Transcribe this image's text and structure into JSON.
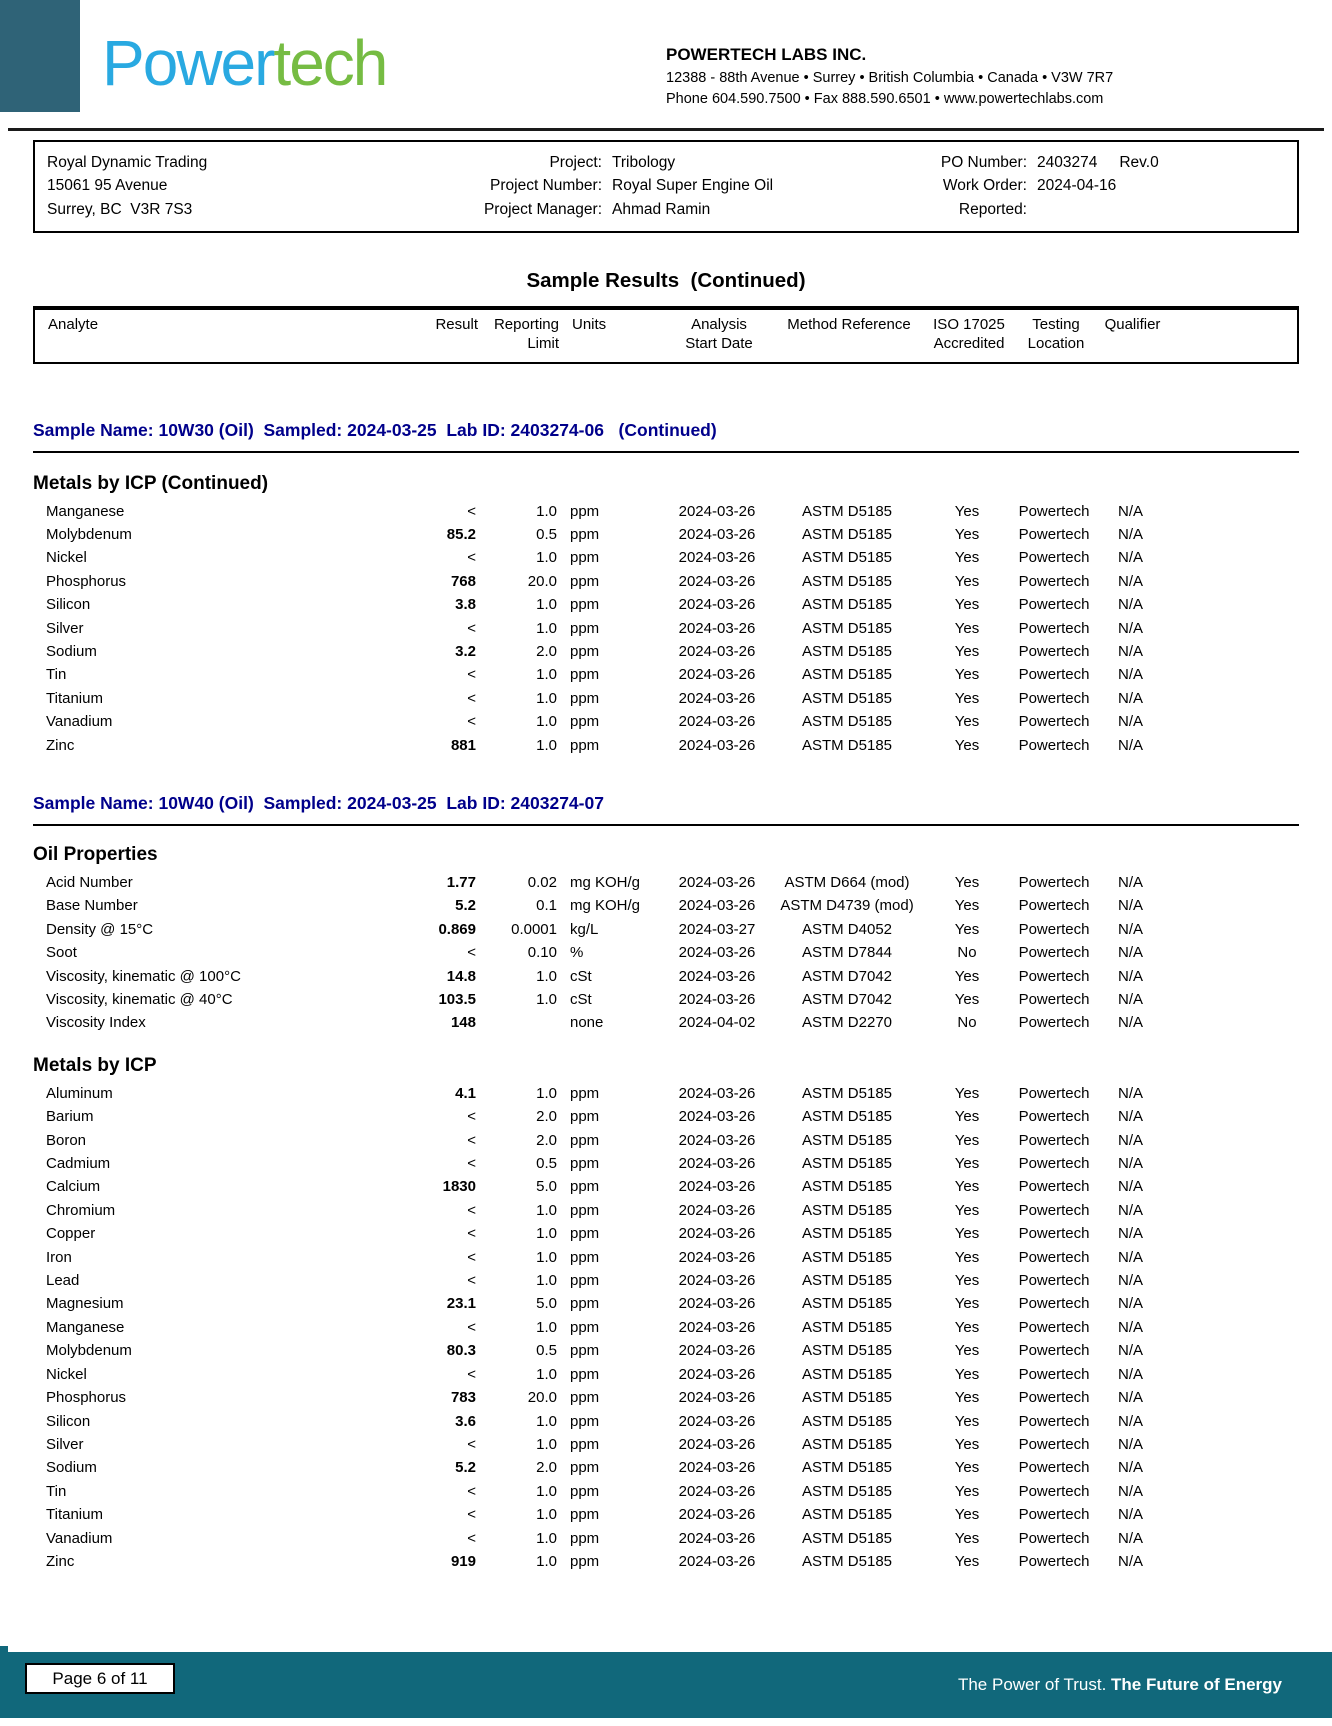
{
  "logo": {
    "part1": "Power",
    "part2": "tech"
  },
  "company": {
    "name": "POWERTECH LABS INC.",
    "address": "12388 - 88th Avenue • Surrey • British Columbia • Canada • V3W 7R7",
    "contact": "Phone 604.590.7500 • Fax 888.590.6501 • www.powertechlabs.com"
  },
  "client": {
    "name": "Royal Dynamic Trading",
    "address1": "15061 95 Avenue",
    "address2": "Surrey, BC  V3R 7S3"
  },
  "project": {
    "label": "Project:",
    "value": "Tribology",
    "number_label": "Project Number:",
    "number": "Royal Super Engine Oil",
    "manager_label": "Project Manager:",
    "manager": "Ahmad Ramin"
  },
  "order": {
    "po_label": "PO Number:",
    "po": "",
    "wo_label": "Work Order:",
    "wo": "2403274",
    "rev": "Rev.0",
    "reported_label": "Reported:",
    "reported": "2024-04-16"
  },
  "title": "Sample Results  (Continued)",
  "columns": [
    {
      "l1": "Analyte",
      "l2": ""
    },
    {
      "l1": "Result",
      "l2": ""
    },
    {
      "l1": "Reporting",
      "l2": "Limit"
    },
    {
      "l1": "Units",
      "l2": ""
    },
    {
      "l1": "Analysis",
      "l2": "Start Date"
    },
    {
      "l1": "Method Reference",
      "l2": ""
    },
    {
      "l1": "ISO 17025",
      "l2": "Accredited"
    },
    {
      "l1": "Testing",
      "l2": "Location"
    },
    {
      "l1": "Qualifier",
      "l2": ""
    }
  ],
  "samples": [
    {
      "header": "Sample Name: 10W30 (Oil)  Sampled: 2024-03-25  Lab ID: 2403274-06   (Continued)",
      "sections": [
        {
          "title": "Metals by ICP  (Continued)",
          "rows": [
            [
              "Manganese",
              "<",
              "1.0",
              "ppm",
              "2024-03-26",
              "ASTM D5185",
              "Yes",
              "Powertech",
              "N/A"
            ],
            [
              "Molybdenum",
              "85.2",
              "0.5",
              "ppm",
              "2024-03-26",
              "ASTM D5185",
              "Yes",
              "Powertech",
              "N/A"
            ],
            [
              "Nickel",
              "<",
              "1.0",
              "ppm",
              "2024-03-26",
              "ASTM D5185",
              "Yes",
              "Powertech",
              "N/A"
            ],
            [
              "Phosphorus",
              "768",
              "20.0",
              "ppm",
              "2024-03-26",
              "ASTM D5185",
              "Yes",
              "Powertech",
              "N/A"
            ],
            [
              "Silicon",
              "3.8",
              "1.0",
              "ppm",
              "2024-03-26",
              "ASTM D5185",
              "Yes",
              "Powertech",
              "N/A"
            ],
            [
              "Silver",
              "<",
              "1.0",
              "ppm",
              "2024-03-26",
              "ASTM D5185",
              "Yes",
              "Powertech",
              "N/A"
            ],
            [
              "Sodium",
              "3.2",
              "2.0",
              "ppm",
              "2024-03-26",
              "ASTM D5185",
              "Yes",
              "Powertech",
              "N/A"
            ],
            [
              "Tin",
              "<",
              "1.0",
              "ppm",
              "2024-03-26",
              "ASTM D5185",
              "Yes",
              "Powertech",
              "N/A"
            ],
            [
              "Titanium",
              "<",
              "1.0",
              "ppm",
              "2024-03-26",
              "ASTM D5185",
              "Yes",
              "Powertech",
              "N/A"
            ],
            [
              "Vanadium",
              "<",
              "1.0",
              "ppm",
              "2024-03-26",
              "ASTM D5185",
              "Yes",
              "Powertech",
              "N/A"
            ],
            [
              "Zinc",
              "881",
              "1.0",
              "ppm",
              "2024-03-26",
              "ASTM D5185",
              "Yes",
              "Powertech",
              "N/A"
            ]
          ]
        }
      ]
    },
    {
      "header": "Sample Name: 10W40 (Oil)  Sampled: 2024-03-25  Lab ID: 2403274-07",
      "sections": [
        {
          "title": "Oil Properties",
          "rows": [
            [
              "Acid Number",
              "1.77",
              "0.02",
              "mg KOH/g",
              "2024-03-26",
              "ASTM D664 (mod)",
              "Yes",
              "Powertech",
              "N/A"
            ],
            [
              "Base Number",
              "5.2",
              "0.1",
              "mg KOH/g",
              "2024-03-26",
              "ASTM D4739 (mod)",
              "Yes",
              "Powertech",
              "N/A"
            ],
            [
              "Density @ 15°C",
              "0.869",
              "0.0001",
              "kg/L",
              "2024-03-27",
              "ASTM D4052",
              "Yes",
              "Powertech",
              "N/A"
            ],
            [
              "Soot",
              "<",
              "0.10",
              "%",
              "2024-03-26",
              "ASTM D7844",
              "No",
              "Powertech",
              "N/A"
            ],
            [
              "Viscosity, kinematic @ 100°C",
              "14.8",
              "1.0",
              "cSt",
              "2024-03-26",
              "ASTM D7042",
              "Yes",
              "Powertech",
              "N/A"
            ],
            [
              "Viscosity, kinematic @ 40°C",
              "103.5",
              "1.0",
              "cSt",
              "2024-03-26",
              "ASTM D7042",
              "Yes",
              "Powertech",
              "N/A"
            ],
            [
              "Viscosity Index",
              "148",
              "",
              "none",
              "2024-04-02",
              "ASTM D2270",
              "No",
              "Powertech",
              "N/A"
            ]
          ]
        },
        {
          "title": "Metals by ICP",
          "rows": [
            [
              "Aluminum",
              "4.1",
              "1.0",
              "ppm",
              "2024-03-26",
              "ASTM D5185",
              "Yes",
              "Powertech",
              "N/A"
            ],
            [
              "Barium",
              "<",
              "2.0",
              "ppm",
              "2024-03-26",
              "ASTM D5185",
              "Yes",
              "Powertech",
              "N/A"
            ],
            [
              "Boron",
              "<",
              "2.0",
              "ppm",
              "2024-03-26",
              "ASTM D5185",
              "Yes",
              "Powertech",
              "N/A"
            ],
            [
              "Cadmium",
              "<",
              "0.5",
              "ppm",
              "2024-03-26",
              "ASTM D5185",
              "Yes",
              "Powertech",
              "N/A"
            ],
            [
              "Calcium",
              "1830",
              "5.0",
              "ppm",
              "2024-03-26",
              "ASTM D5185",
              "Yes",
              "Powertech",
              "N/A"
            ],
            [
              "Chromium",
              "<",
              "1.0",
              "ppm",
              "2024-03-26",
              "ASTM D5185",
              "Yes",
              "Powertech",
              "N/A"
            ],
            [
              "Copper",
              "<",
              "1.0",
              "ppm",
              "2024-03-26",
              "ASTM D5185",
              "Yes",
              "Powertech",
              "N/A"
            ],
            [
              "Iron",
              "<",
              "1.0",
              "ppm",
              "2024-03-26",
              "ASTM D5185",
              "Yes",
              "Powertech",
              "N/A"
            ],
            [
              "Lead",
              "<",
              "1.0",
              "ppm",
              "2024-03-26",
              "ASTM D5185",
              "Yes",
              "Powertech",
              "N/A"
            ],
            [
              "Magnesium",
              "23.1",
              "5.0",
              "ppm",
              "2024-03-26",
              "ASTM D5185",
              "Yes",
              "Powertech",
              "N/A"
            ],
            [
              "Manganese",
              "<",
              "1.0",
              "ppm",
              "2024-03-26",
              "ASTM D5185",
              "Yes",
              "Powertech",
              "N/A"
            ],
            [
              "Molybdenum",
              "80.3",
              "0.5",
              "ppm",
              "2024-03-26",
              "ASTM D5185",
              "Yes",
              "Powertech",
              "N/A"
            ],
            [
              "Nickel",
              "<",
              "1.0",
              "ppm",
              "2024-03-26",
              "ASTM D5185",
              "Yes",
              "Powertech",
              "N/A"
            ],
            [
              "Phosphorus",
              "783",
              "20.0",
              "ppm",
              "2024-03-26",
              "ASTM D5185",
              "Yes",
              "Powertech",
              "N/A"
            ],
            [
              "Silicon",
              "3.6",
              "1.0",
              "ppm",
              "2024-03-26",
              "ASTM D5185",
              "Yes",
              "Powertech",
              "N/A"
            ],
            [
              "Silver",
              "<",
              "1.0",
              "ppm",
              "2024-03-26",
              "ASTM D5185",
              "Yes",
              "Powertech",
              "N/A"
            ],
            [
              "Sodium",
              "5.2",
              "2.0",
              "ppm",
              "2024-03-26",
              "ASTM D5185",
              "Yes",
              "Powertech",
              "N/A"
            ],
            [
              "Tin",
              "<",
              "1.0",
              "ppm",
              "2024-03-26",
              "ASTM D5185",
              "Yes",
              "Powertech",
              "N/A"
            ],
            [
              "Titanium",
              "<",
              "1.0",
              "ppm",
              "2024-03-26",
              "ASTM D5185",
              "Yes",
              "Powertech",
              "N/A"
            ],
            [
              "Vanadium",
              "<",
              "1.0",
              "ppm",
              "2024-03-26",
              "ASTM D5185",
              "Yes",
              "Powertech",
              "N/A"
            ],
            [
              "Zinc",
              "919",
              "1.0",
              "ppm",
              "2024-03-26",
              "ASTM D5185",
              "Yes",
              "Powertech",
              "N/A"
            ]
          ]
        }
      ]
    }
  ],
  "footer": {
    "page": "Page 6 of 11",
    "slogan_normal": "The Power of Trust. ",
    "slogan_bold": "The Future of Energy"
  },
  "colors": {
    "navy": "#00008B",
    "brand_square": "#2F6377",
    "footer_teal": "#11687B",
    "logo_blue": "#29A9E1",
    "logo_green": "#76BC43"
  }
}
